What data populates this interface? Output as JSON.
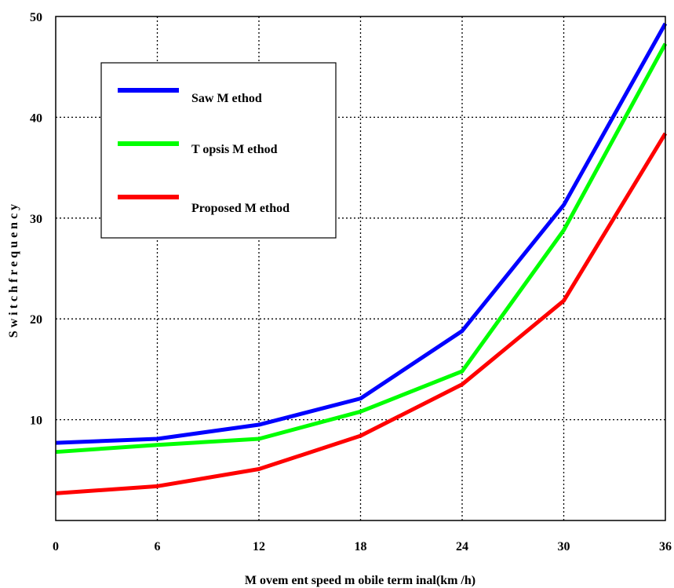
{
  "chart_data": {
    "type": "line",
    "title": "",
    "xlabel": "M ovem ent speed m obile term inal(km /h)",
    "ylabel": "S w i t c h   f r e q u e n c y",
    "x": [
      0,
      6,
      12,
      18,
      24,
      30,
      36
    ],
    "xlim": [
      0,
      36
    ],
    "ylim": [
      0,
      50
    ],
    "xticks": [
      "0",
      "6",
      "12",
      "18",
      "24",
      "30",
      "36"
    ],
    "yticks": [
      "10",
      "20",
      "30",
      "40",
      "50"
    ],
    "ytick_values": [
      10,
      20,
      30,
      40,
      50
    ],
    "grid": true,
    "legend_position": "upper-left",
    "series": [
      {
        "name": "Saw M ethod",
        "color": "#0000ff",
        "values": [
          7.7,
          8.1,
          9.5,
          12.1,
          18.8,
          31.3,
          49.3
        ]
      },
      {
        "name": "T opsis M ethod",
        "color": "#00ff00",
        "values": [
          6.8,
          7.5,
          8.1,
          10.8,
          14.8,
          28.8,
          47.3
        ]
      },
      {
        "name": "Proposed M ethod",
        "color": "#ff0000",
        "values": [
          2.7,
          3.4,
          5.1,
          8.4,
          13.5,
          21.8,
          38.4
        ]
      }
    ]
  }
}
